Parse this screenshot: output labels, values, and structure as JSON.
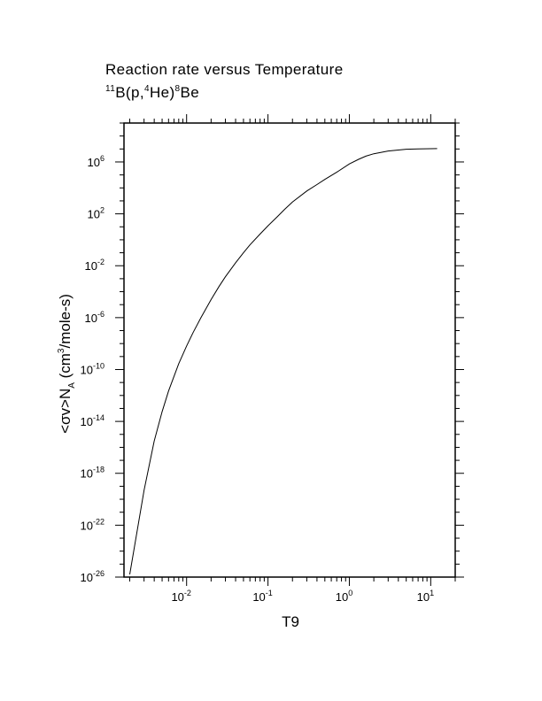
{
  "chart_data": {
    "type": "line",
    "title": "Reaction rate versus Temperature",
    "subtitle": {
      "pre1": "11",
      "t1": "B(p,",
      "pre2": "4",
      "t2": "He)",
      "pre3": "8",
      "t3": "Be"
    },
    "xlabel": "T9",
    "ylabel": {
      "t1": "<σv>N",
      "sub": "A",
      "t2": " (cm",
      "sup": "3",
      "t3": "/mole-s)"
    },
    "xscale": "log",
    "yscale": "log",
    "xlim": [
      0.0017,
      20
    ],
    "ylim": [
      1e-26,
      1000000000.0
    ],
    "grid": false,
    "x_ticks": [
      {
        "base": "10",
        "exp": "-2",
        "value": 0.01
      },
      {
        "base": "10",
        "exp": "-1",
        "value": 0.1
      },
      {
        "base": "10",
        "exp": "0",
        "value": 1
      },
      {
        "base": "10",
        "exp": "1",
        "value": 10
      }
    ],
    "y_ticks": [
      {
        "base": "10",
        "exp": "-26",
        "value": 1e-26
      },
      {
        "base": "10",
        "exp": "-22",
        "value": 1e-22
      },
      {
        "base": "10",
        "exp": "-18",
        "value": 1e-18
      },
      {
        "base": "10",
        "exp": "-14",
        "value": 1e-14
      },
      {
        "base": "10",
        "exp": "-10",
        "value": 1e-10
      },
      {
        "base": "10",
        "exp": "-6",
        "value": 1e-06
      },
      {
        "base": "10",
        "exp": "-2",
        "value": 0.01
      },
      {
        "base": "10",
        "exp": "2",
        "value": 100
      },
      {
        "base": "10",
        "exp": "6",
        "value": 1000000
      }
    ],
    "series": [
      {
        "x": [
          0.002,
          0.003,
          0.004,
          0.005,
          0.006,
          0.008,
          0.01,
          0.012,
          0.015,
          0.02,
          0.025,
          0.03,
          0.04,
          0.05,
          0.06,
          0.08,
          0.1,
          0.13,
          0.16,
          0.2,
          0.3,
          0.4,
          0.5,
          0.7,
          1,
          1.3,
          1.6,
          2,
          3,
          5,
          7,
          10,
          12
        ],
        "y": [
          1.6e-26,
          5e-20,
          3e-16,
          5.5e-14,
          2.2e-12,
          2.8e-10,
          6.5e-09,
          7e-08,
          1e-06,
          2.5e-05,
          0.00025,
          0.0014,
          0.017,
          0.1,
          0.4,
          2.8,
          12,
          60,
          220,
          820,
          5800,
          18000,
          45000,
          160000,
          700000,
          1600000,
          2800000,
          4300000,
          7000000,
          9500000,
          10200000,
          10500000,
          10600000
        ]
      }
    ]
  }
}
